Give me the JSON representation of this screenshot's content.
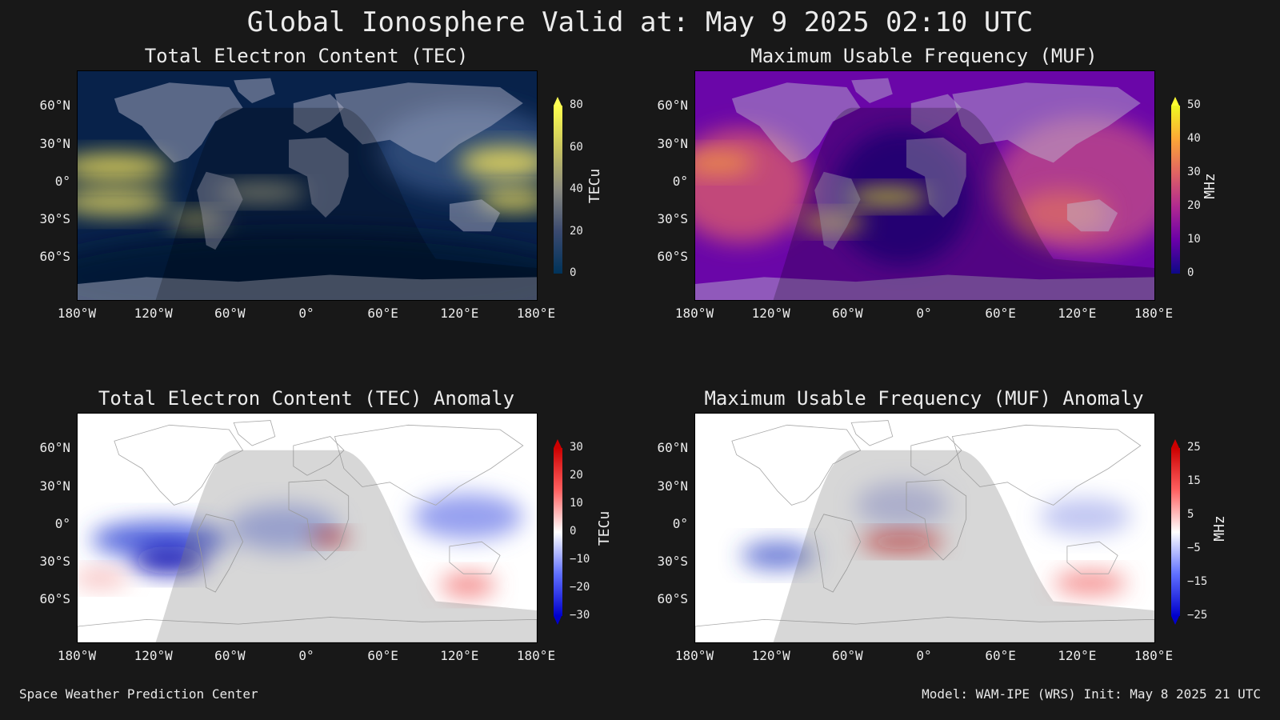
{
  "title": "Global Ionosphere Valid at: May 9 2025 02:10 UTC",
  "lat_labels": [
    "60°N",
    "30°N",
    "0°",
    "30°S",
    "60°S"
  ],
  "lon_labels": [
    "180°W",
    "120°W",
    "60°W",
    "0°",
    "60°E",
    "120°E",
    "180°E"
  ],
  "panels": [
    {
      "title": "Total Electron Content (TEC)",
      "units": "TECu",
      "ticks": [
        "80",
        "60",
        "40",
        "20",
        "0"
      ],
      "colors": [
        "#ffff55",
        "#001a33"
      ]
    },
    {
      "title": "Maximum Usable Frequency (MUF)",
      "units": "MHz",
      "ticks": [
        "50",
        "40",
        "30",
        "20",
        "10",
        "0"
      ],
      "colors": [
        "#ffff33",
        "#0d0887"
      ]
    },
    {
      "title": "Total Electron Content (TEC) Anomaly",
      "units": "TECu",
      "ticks": [
        "30",
        "20",
        "10",
        "0",
        "−10",
        "−20",
        "−30"
      ],
      "colors": [
        "#cc0000",
        "#0000cc"
      ]
    },
    {
      "title": "Maximum Usable Frequency (MUF) Anomaly",
      "units": "MHz",
      "ticks": [
        "25",
        "15",
        "5",
        "−5",
        "−15",
        "−25"
      ],
      "colors": [
        "#cc0000",
        "#0000cc"
      ]
    }
  ],
  "footer": {
    "left": "Space Weather Prediction Center",
    "right": "Model: WAM-IPE (WRS) Init: May 8 2025 21 UTC"
  }
}
